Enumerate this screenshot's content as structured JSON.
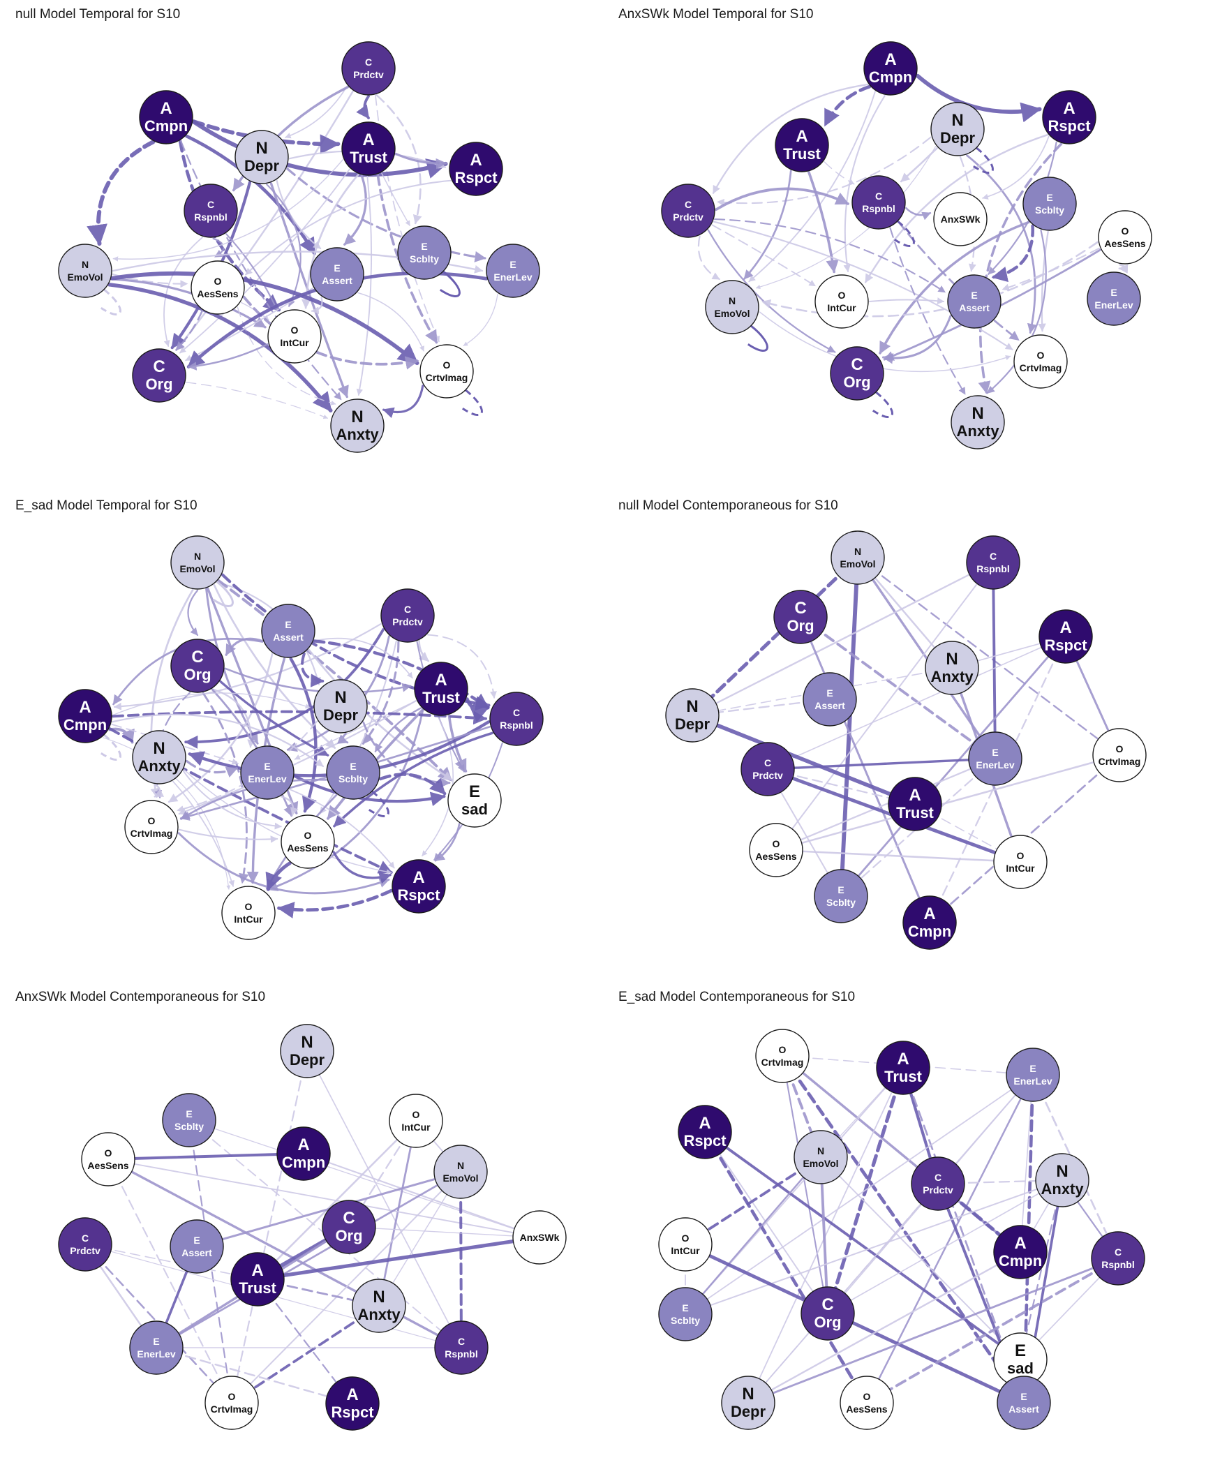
{
  "colors": {
    "A": "#2f0b6e",
    "C": "#54338f",
    "E": "#8a84c0",
    "N": "#cfcfe4",
    "O": "#ffffff",
    "edge_strong": "#6a5eb0",
    "edge_medium": "#9d95cc",
    "edge_light": "#cdc9e6"
  },
  "panels": [
    {
      "title": "null Model Temporal for S10",
      "nodes": [
        {
          "l1": "C",
          "l2": "Prdctv",
          "g": "C"
        },
        {
          "l1": "A",
          "l2": "Cmpn",
          "g": "A"
        },
        {
          "l1": "N",
          "l2": "Depr",
          "g": "N"
        },
        {
          "l1": "A",
          "l2": "Trust",
          "g": "A"
        },
        {
          "l1": "A",
          "l2": "Rspct",
          "g": "A"
        },
        {
          "l1": "C",
          "l2": "Rspnbl",
          "g": "C"
        },
        {
          "l1": "E",
          "l2": "Scblty",
          "g": "E"
        },
        {
          "l1": "N",
          "l2": "EmoVol",
          "g": "N"
        },
        {
          "l1": "O",
          "l2": "AesSens",
          "g": "O"
        },
        {
          "l1": "E",
          "l2": "Assert",
          "g": "E"
        },
        {
          "l1": "E",
          "l2": "EnerLev",
          "g": "E"
        },
        {
          "l1": "O",
          "l2": "IntCur",
          "g": "O"
        },
        {
          "l1": "C",
          "l2": "Org",
          "g": "C"
        },
        {
          "l1": "O",
          "l2": "CrtvImag",
          "g": "O"
        },
        {
          "l1": "N",
          "l2": "Anxty",
          "g": "N"
        }
      ]
    },
    {
      "title": "AnxSWk Model Temporal for S10",
      "nodes": [
        {
          "l1": "A",
          "l2": "Cmpn",
          "g": "A"
        },
        {
          "l1": "N",
          "l2": "Depr",
          "g": "N"
        },
        {
          "l1": "A",
          "l2": "Rspct",
          "g": "A"
        },
        {
          "l1": "A",
          "l2": "Trust",
          "g": "A"
        },
        {
          "l1": "C",
          "l2": "Prdctv",
          "g": "C"
        },
        {
          "l1": "C",
          "l2": "Rspnbl",
          "g": "C"
        },
        {
          "l1": "",
          "l2": "AnxSWk",
          "g": "O"
        },
        {
          "l1": "E",
          "l2": "Scblty",
          "g": "E"
        },
        {
          "l1": "O",
          "l2": "AesSens",
          "g": "O"
        },
        {
          "l1": "N",
          "l2": "EmoVol",
          "g": "N"
        },
        {
          "l1": "O",
          "l2": "IntCur",
          "g": "O"
        },
        {
          "l1": "E",
          "l2": "Assert",
          "g": "E"
        },
        {
          "l1": "E",
          "l2": "EnerLev",
          "g": "E"
        },
        {
          "l1": "C",
          "l2": "Org",
          "g": "C"
        },
        {
          "l1": "O",
          "l2": "CrtvImag",
          "g": "O"
        },
        {
          "l1": "N",
          "l2": "Anxty",
          "g": "N"
        }
      ]
    },
    {
      "title": "E_sad Model Temporal for S10",
      "nodes": [
        {
          "l1": "N",
          "l2": "EmoVol",
          "g": "N"
        },
        {
          "l1": "C",
          "l2": "Prdctv",
          "g": "C"
        },
        {
          "l1": "E",
          "l2": "Assert",
          "g": "E"
        },
        {
          "l1": "C",
          "l2": "Org",
          "g": "C"
        },
        {
          "l1": "A",
          "l2": "Trust",
          "g": "A"
        },
        {
          "l1": "A",
          "l2": "Cmpn",
          "g": "A"
        },
        {
          "l1": "N",
          "l2": "Depr",
          "g": "N"
        },
        {
          "l1": "C",
          "l2": "Rspnbl",
          "g": "C"
        },
        {
          "l1": "N",
          "l2": "Anxty",
          "g": "N"
        },
        {
          "l1": "E",
          "l2": "EnerLev",
          "g": "E"
        },
        {
          "l1": "E",
          "l2": "Scblty",
          "g": "E"
        },
        {
          "l1": "E",
          "l2": "sad",
          "g": "O"
        },
        {
          "l1": "O",
          "l2": "CrtvImag",
          "g": "O"
        },
        {
          "l1": "O",
          "l2": "AesSens",
          "g": "O"
        },
        {
          "l1": "A",
          "l2": "Rspct",
          "g": "A"
        },
        {
          "l1": "O",
          "l2": "IntCur",
          "g": "O"
        }
      ]
    },
    {
      "title": "null Model Contemporaneous for S10",
      "nodes": [
        {
          "l1": "N",
          "l2": "EmoVol",
          "g": "N"
        },
        {
          "l1": "C",
          "l2": "Rspnbl",
          "g": "C"
        },
        {
          "l1": "C",
          "l2": "Org",
          "g": "C"
        },
        {
          "l1": "A",
          "l2": "Rspct",
          "g": "A"
        },
        {
          "l1": "N",
          "l2": "Anxty",
          "g": "N"
        },
        {
          "l1": "E",
          "l2": "Assert",
          "g": "E"
        },
        {
          "l1": "N",
          "l2": "Depr",
          "g": "N"
        },
        {
          "l1": "O",
          "l2": "CrtvImag",
          "g": "O"
        },
        {
          "l1": "E",
          "l2": "EnerLev",
          "g": "E"
        },
        {
          "l1": "C",
          "l2": "Prdctv",
          "g": "C"
        },
        {
          "l1": "A",
          "l2": "Trust",
          "g": "A"
        },
        {
          "l1": "O",
          "l2": "AesSens",
          "g": "O"
        },
        {
          "l1": "O",
          "l2": "IntCur",
          "g": "O"
        },
        {
          "l1": "E",
          "l2": "Scblty",
          "g": "E"
        },
        {
          "l1": "A",
          "l2": "Cmpn",
          "g": "A"
        }
      ]
    },
    {
      "title": "AnxSWk Model Contemporaneous for S10",
      "nodes": [
        {
          "l1": "N",
          "l2": "Depr",
          "g": "N"
        },
        {
          "l1": "E",
          "l2": "Scblty",
          "g": "E"
        },
        {
          "l1": "O",
          "l2": "IntCur",
          "g": "O"
        },
        {
          "l1": "O",
          "l2": "AesSens",
          "g": "O"
        },
        {
          "l1": "A",
          "l2": "Cmpn",
          "g": "A"
        },
        {
          "l1": "N",
          "l2": "EmoVol",
          "g": "N"
        },
        {
          "l1": "C",
          "l2": "Org",
          "g": "C"
        },
        {
          "l1": "",
          "l2": "AnxSWk",
          "g": "O"
        },
        {
          "l1": "C",
          "l2": "Prdctv",
          "g": "C"
        },
        {
          "l1": "E",
          "l2": "Assert",
          "g": "E"
        },
        {
          "l1": "A",
          "l2": "Trust",
          "g": "A"
        },
        {
          "l1": "N",
          "l2": "Anxty",
          "g": "N"
        },
        {
          "l1": "E",
          "l2": "EnerLev",
          "g": "E"
        },
        {
          "l1": "C",
          "l2": "Rspnbl",
          "g": "C"
        },
        {
          "l1": "O",
          "l2": "CrtvImag",
          "g": "O"
        },
        {
          "l1": "A",
          "l2": "Rspct",
          "g": "A"
        }
      ]
    },
    {
      "title": "E_sad Model Contemporaneous for S10",
      "nodes": [
        {
          "l1": "O",
          "l2": "CrtvImag",
          "g": "O"
        },
        {
          "l1": "A",
          "l2": "Trust",
          "g": "A"
        },
        {
          "l1": "E",
          "l2": "EnerLev",
          "g": "E"
        },
        {
          "l1": "A",
          "l2": "Rspct",
          "g": "A"
        },
        {
          "l1": "N",
          "l2": "EmoVol",
          "g": "N"
        },
        {
          "l1": "C",
          "l2": "Prdctv",
          "g": "C"
        },
        {
          "l1": "N",
          "l2": "Anxty",
          "g": "N"
        },
        {
          "l1": "O",
          "l2": "IntCur",
          "g": "O"
        },
        {
          "l1": "A",
          "l2": "Cmpn",
          "g": "A"
        },
        {
          "l1": "C",
          "l2": "Rspnbl",
          "g": "C"
        },
        {
          "l1": "E",
          "l2": "Scblty",
          "g": "E"
        },
        {
          "l1": "C",
          "l2": "Org",
          "g": "C"
        },
        {
          "l1": "E",
          "l2": "sad",
          "g": "O"
        },
        {
          "l1": "N",
          "l2": "Depr",
          "g": "N"
        },
        {
          "l1": "O",
          "l2": "AesSens",
          "g": "O"
        },
        {
          "l1": "E",
          "l2": "Assert",
          "g": "E"
        }
      ]
    }
  ]
}
